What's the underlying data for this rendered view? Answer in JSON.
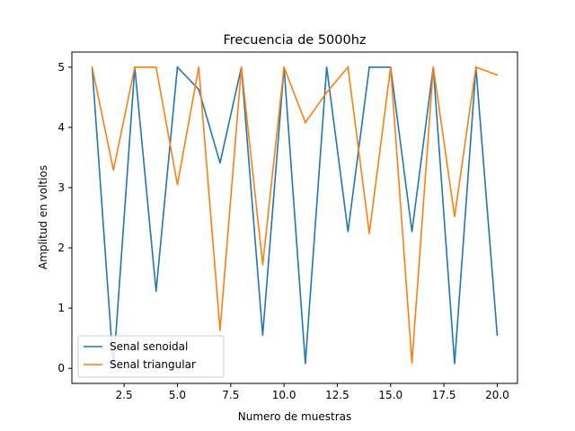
{
  "chart_data": {
    "type": "line",
    "title": "Frecuencia de 5000hz",
    "xlabel": "Numero de muestras",
    "ylabel": "Amplitud en voltios",
    "xlim": [
      0.05,
      20.95
    ],
    "ylim": [
      -0.25,
      5.25
    ],
    "x_ticks": [
      "2.5",
      "5.0",
      "7.5",
      "10.0",
      "12.5",
      "15.0",
      "17.5",
      "20.0"
    ],
    "x_tick_values": [
      2.5,
      5.0,
      7.5,
      10.0,
      12.5,
      15.0,
      17.5,
      20.0
    ],
    "y_ticks": [
      "0",
      "1",
      "2",
      "3",
      "4",
      "5"
    ],
    "y_tick_values": [
      0,
      1,
      2,
      3,
      4,
      5
    ],
    "grid": false,
    "legend_position": "lower-left",
    "x": [
      1,
      2,
      3,
      4,
      5,
      6,
      7,
      8,
      9,
      10,
      11,
      12,
      13,
      14,
      15,
      16,
      17,
      18,
      19,
      20
    ],
    "series": [
      {
        "name": "Senal senoidal",
        "color": "#1f77b4",
        "values": [
          5.0,
          0.0,
          5.0,
          1.28,
          5.0,
          4.63,
          3.41,
          5.0,
          0.55,
          5.0,
          0.08,
          5.0,
          2.27,
          5.0,
          5.0,
          2.27,
          5.0,
          0.08,
          5.0,
          0.55
        ]
      },
      {
        "name": "Senal triangular",
        "color": "#ff7f0e",
        "values": [
          5.0,
          3.29,
          5.0,
          5.0,
          3.05,
          5.0,
          0.63,
          5.0,
          1.72,
          5.0,
          4.08,
          4.58,
          5.0,
          2.24,
          5.0,
          0.09,
          5.0,
          2.52,
          5.0,
          4.87
        ]
      }
    ]
  }
}
